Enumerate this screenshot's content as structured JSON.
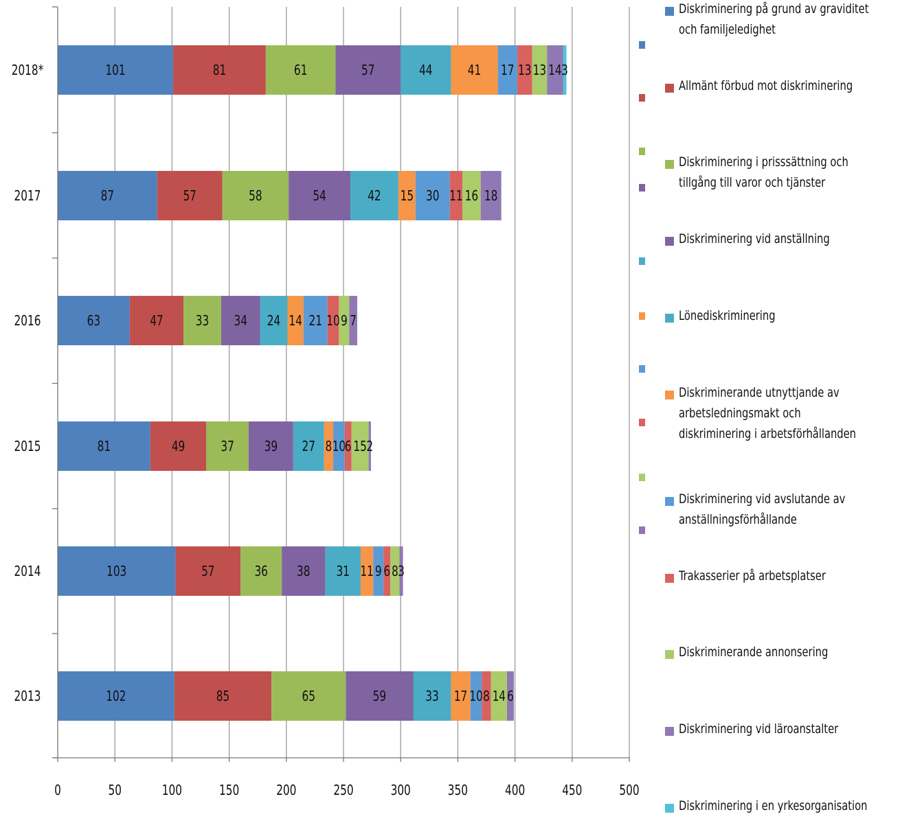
{
  "chart_data": {
    "type": "bar",
    "orientation": "horizontal",
    "stacked": true,
    "title": "",
    "xlabel": "",
    "ylabel": "",
    "xlim": [
      0,
      500
    ],
    "x_ticks": [
      "0",
      "50",
      "100",
      "150",
      "200",
      "250",
      "300",
      "350",
      "400",
      "450",
      "500"
    ],
    "grid": true,
    "legend_position": "right",
    "categories": [
      "2018*",
      "2017",
      "2016",
      "2015",
      "2014",
      "2013"
    ],
    "series": [
      {
        "name": "Diskriminering på grund av graviditet och familjeledighet",
        "color": "#4f81bd",
        "values": [
          101,
          87,
          63,
          81,
          103,
          102
        ]
      },
      {
        "name": "Allmänt förbud mot diskriminering",
        "color": "#c0504d",
        "values": [
          81,
          57,
          47,
          49,
          57,
          85
        ]
      },
      {
        "name": "Diskriminering i prisssättning och tillgång till varor och tjänster",
        "color": "#9bbb59",
        "values": [
          61,
          58,
          33,
          37,
          36,
          65
        ]
      },
      {
        "name": "Diskriminering vid anställning",
        "color": "#8064a2",
        "values": [
          57,
          54,
          34,
          39,
          38,
          59
        ]
      },
      {
        "name": "Lönediskriminering",
        "color": "#4bacc6",
        "values": [
          44,
          42,
          24,
          27,
          31,
          33
        ]
      },
      {
        "name": "Diskriminerande utnyttjande av arbetsledningsmakt och diskriminering i arbetsförhållanden",
        "color": "#f79646",
        "values": [
          41,
          15,
          14,
          8,
          11,
          17
        ]
      },
      {
        "name": "Diskriminering vid avslutande av anställningsförhållande",
        "color": "#5b9bd5",
        "values": [
          17,
          30,
          21,
          10,
          9,
          10
        ]
      },
      {
        "name": "Trakasserier på arbetsplatser",
        "color": "#d9625e",
        "values": [
          13,
          11,
          10,
          6,
          6,
          8
        ]
      },
      {
        "name": "Diskriminerande annonsering",
        "color": "#abcc6b",
        "values": [
          13,
          16,
          9,
          15,
          8,
          14
        ]
      },
      {
        "name": "Diskriminering vid läroanstalter",
        "color": "#9078b4",
        "values": [
          14,
          18,
          7,
          2,
          3,
          6
        ]
      },
      {
        "name": "Diskriminering i en yrkesorganisation",
        "color": "#53c2d8",
        "values": [
          3,
          0,
          0,
          0,
          0,
          0
        ]
      }
    ]
  }
}
